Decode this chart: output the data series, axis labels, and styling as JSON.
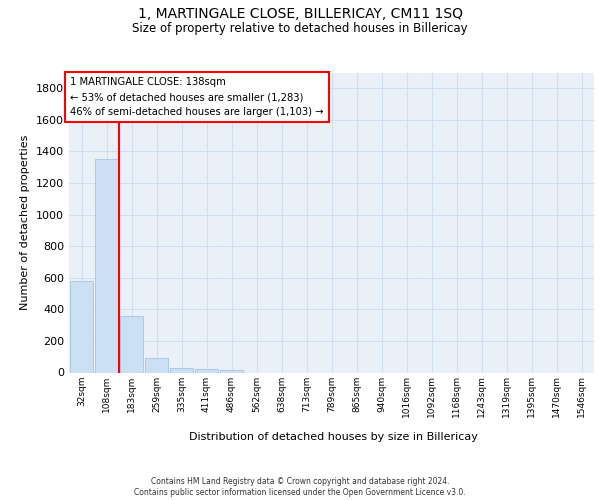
{
  "title": "1, MARTINGALE CLOSE, BILLERICAY, CM11 1SQ",
  "subtitle": "Size of property relative to detached houses in Billericay",
  "xlabel": "Distribution of detached houses by size in Billericay",
  "ylabel": "Number of detached properties",
  "bar_labels": [
    "32sqm",
    "108sqm",
    "183sqm",
    "259sqm",
    "335sqm",
    "411sqm",
    "486sqm",
    "562sqm",
    "638sqm",
    "713sqm",
    "789sqm",
    "865sqm",
    "940sqm",
    "1016sqm",
    "1092sqm",
    "1168sqm",
    "1243sqm",
    "1319sqm",
    "1395sqm",
    "1470sqm",
    "1546sqm"
  ],
  "bar_values": [
    580,
    1355,
    355,
    90,
    30,
    20,
    15,
    0,
    0,
    0,
    0,
    0,
    0,
    0,
    0,
    0,
    0,
    0,
    0,
    0,
    0
  ],
  "bar_color": "#cce0f5",
  "bar_edge_color": "#aec8e8",
  "grid_color": "#d0dff0",
  "background_color": "#eaf0f8",
  "vline_x": 1.5,
  "vline_color": "red",
  "annotation_box_text": "1 MARTINGALE CLOSE: 138sqm\n← 53% of detached houses are smaller (1,283)\n46% of semi-detached houses are larger (1,103) →",
  "ylim": [
    0,
    1900
  ],
  "yticks": [
    0,
    200,
    400,
    600,
    800,
    1000,
    1200,
    1400,
    1600,
    1800
  ],
  "footer_line1": "Contains HM Land Registry data © Crown copyright and database right 2024.",
  "footer_line2": "Contains public sector information licensed under the Open Government Licence v3.0."
}
